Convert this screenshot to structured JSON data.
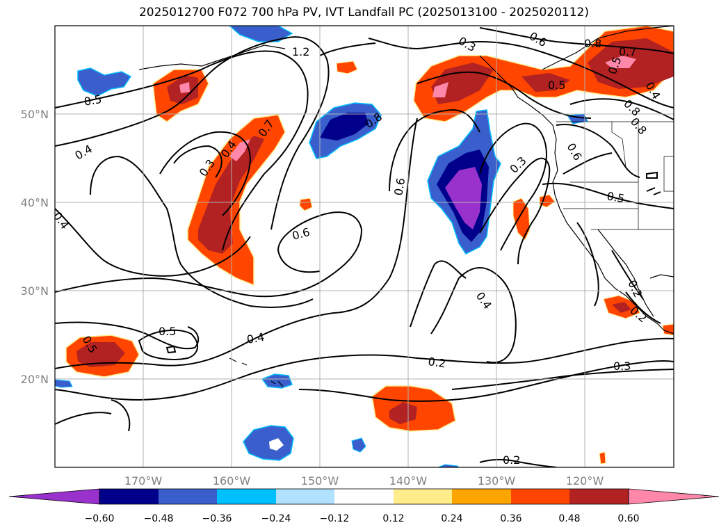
{
  "figure": {
    "title": "2025012700 F072 700 hPa PV, IVT Landfall PC (2025013100 - 2025020112)"
  },
  "map": {
    "projection": "PlateCarree",
    "lon_range": [
      -180,
      -110
    ],
    "lat_range": [
      10,
      60
    ],
    "lon_ticks": [
      "170°W",
      "160°W",
      "150°W",
      "140°W",
      "130°W",
      "120°W"
    ],
    "lat_ticks": [
      "50°N",
      "40°N",
      "30°N",
      "20°N"
    ],
    "grid": true,
    "coastlines": true,
    "state_borders": true
  },
  "contour_labels": [
    "1.2",
    "0.5",
    "0.6",
    "0.8",
    "0.7",
    "0.5",
    "0.4",
    "0.5",
    "0.8",
    "0.4",
    "0.3",
    "0.4",
    "0.7",
    "0.8",
    "0.8",
    "0.6",
    "0.3",
    "0.6",
    "0.5",
    "0.4",
    "0.6",
    "0.4",
    "0.5",
    "0.2",
    "0.3",
    "0.5",
    "0.2",
    "0.4",
    "0.2",
    "0.3",
    "0.2"
  ],
  "colorbar": {
    "ticks": [
      "−0.60",
      "−0.48",
      "−0.36",
      "−0.24",
      "−0.12",
      "0.12",
      "0.24",
      "0.36",
      "0.48",
      "0.60"
    ],
    "colors": [
      "#9932cc",
      "#00008b",
      "#3a5fcd",
      "#00bfff",
      "#b0e2ff",
      "#ffffff",
      "#ffec8b",
      "#ffa500",
      "#ff4500",
      "#b22222",
      "#ff88aa"
    ]
  }
}
